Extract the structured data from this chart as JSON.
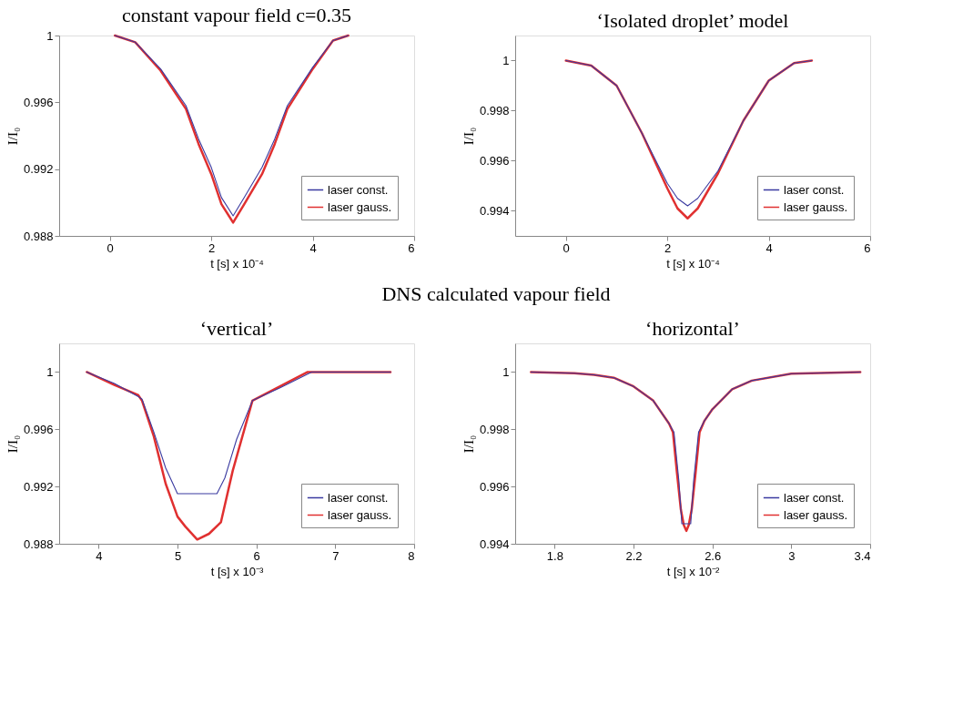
{
  "chart_data": [
    {
      "type": "line",
      "title": "constant vapour field c=0.35",
      "xlabel": "t [s] x 10⁻⁴",
      "ylabel": "I/I₀",
      "xlim": [
        -1,
        6
      ],
      "ylim": [
        0.988,
        1
      ],
      "xticks": [
        0,
        2,
        4,
        6
      ],
      "yticks": [
        0.988,
        0.992,
        0.996,
        1
      ],
      "grid": false,
      "legend": "bottom right",
      "line_style": "solid",
      "marker": "none",
      "series": [
        {
          "name": "laser const.",
          "color": "#3a3aa0",
          "x": [
            0.1,
            0.5,
            1.0,
            1.5,
            1.75,
            2.0,
            2.2,
            2.43,
            2.65,
            3.0,
            3.25,
            3.5,
            4.0,
            4.4,
            4.7
          ],
          "values": [
            1,
            0.9996,
            0.998,
            0.9958,
            0.9938,
            0.9921,
            0.9903,
            0.9892,
            0.9903,
            0.9921,
            0.9938,
            0.9958,
            0.9981,
            0.9997,
            1
          ]
        },
        {
          "name": "laser gauss.",
          "color": "#e03030",
          "x": [
            0.1,
            0.5,
            1.0,
            1.5,
            1.75,
            2.0,
            2.2,
            2.43,
            2.65,
            3.0,
            3.25,
            3.5,
            4.0,
            4.4,
            4.7
          ],
          "values": [
            1,
            0.9996,
            0.9979,
            0.9956,
            0.9935,
            0.9917,
            0.9899,
            0.9888,
            0.9899,
            0.9917,
            0.9935,
            0.9956,
            0.998,
            0.9997,
            1
          ]
        }
      ]
    },
    {
      "type": "line",
      "title": "‘Isolated droplet’ model",
      "xlabel": "t [s] x 10⁻⁴",
      "ylabel": "I/I₀",
      "xlim": [
        -1,
        6
      ],
      "ylim": [
        0.993,
        1.001
      ],
      "xticks": [
        0,
        2,
        4,
        6
      ],
      "yticks": [
        0.994,
        0.996,
        0.998,
        1
      ],
      "grid": false,
      "legend": "bottom right",
      "line_style": "solid",
      "marker": "none",
      "series": [
        {
          "name": "laser const.",
          "color": "#3a3aa0",
          "x": [
            0,
            0.5,
            1.0,
            1.5,
            2.0,
            2.2,
            2.4,
            2.6,
            3.0,
            3.5,
            4.0,
            4.5,
            4.85
          ],
          "values": [
            1,
            0.9998,
            0.999,
            0.9971,
            0.9951,
            0.9945,
            0.9942,
            0.9945,
            0.9956,
            0.9976,
            0.9992,
            0.9999,
            1
          ]
        },
        {
          "name": "laser gauss.",
          "color": "#e03030",
          "x": [
            0,
            0.5,
            1.0,
            1.5,
            2.0,
            2.2,
            2.4,
            2.6,
            3.0,
            3.5,
            4.0,
            4.5,
            4.85
          ],
          "values": [
            1,
            0.9998,
            0.999,
            0.9971,
            0.9949,
            0.9941,
            0.9937,
            0.9941,
            0.9955,
            0.9976,
            0.9992,
            0.9999,
            1
          ]
        }
      ]
    },
    {
      "type": "line",
      "title": "‘vertical’",
      "annotations": [
        "DNS calculated vapour field"
      ],
      "xlabel": "t [s] x 10⁻³",
      "ylabel": "I/I₀",
      "xlim": [
        3.5,
        8
      ],
      "ylim": [
        0.988,
        1.002
      ],
      "xticks": [
        4,
        5,
        6,
        7,
        8
      ],
      "yticks": [
        0.988,
        0.992,
        0.996,
        1
      ],
      "grid": false,
      "legend": "bottom right",
      "line_style": "solid",
      "marker": "none",
      "series": [
        {
          "name": "laser const.",
          "color": "#3a3aa0",
          "x": [
            3.85,
            4.2,
            4.5,
            4.55,
            4.7,
            4.85,
            5.0,
            5.5,
            5.6,
            5.75,
            5.95,
            6.3,
            6.7,
            7.7
          ],
          "values": [
            1,
            0.9992,
            0.9983,
            0.9981,
            0.9958,
            0.9933,
            0.9915,
            0.9915,
            0.9926,
            0.9953,
            0.998,
            0.9989,
            1,
            1
          ]
        },
        {
          "name": "laser gauss.",
          "color": "#e03030",
          "x": [
            3.85,
            4.2,
            4.5,
            4.55,
            4.7,
            4.85,
            5.0,
            5.1,
            5.25,
            5.4,
            5.55,
            5.7,
            5.95,
            6.3,
            6.65,
            7.7
          ],
          "values": [
            1,
            0.9991,
            0.9984,
            0.998,
            0.9955,
            0.9922,
            0.9899,
            0.9892,
            0.9883,
            0.9887,
            0.9895,
            0.9931,
            0.998,
            0.999,
            1,
            1
          ]
        }
      ]
    },
    {
      "type": "line",
      "title": "‘horizontal’",
      "xlabel": "t [s] x 10⁻²",
      "ylabel": "I/I₀",
      "xlim": [
        1.6,
        3.4
      ],
      "ylim": [
        0.994,
        1.001
      ],
      "xticks": [
        1.8,
        2.2,
        2.6,
        3,
        3.4
      ],
      "yticks": [
        0.994,
        0.996,
        0.998,
        1
      ],
      "grid": false,
      "legend": "bottom right",
      "line_style": "solid",
      "marker": "none",
      "series": [
        {
          "name": "laser const.",
          "color": "#3a3aa0",
          "x": [
            1.68,
            1.9,
            2.0,
            2.1,
            2.2,
            2.3,
            2.38,
            2.405,
            2.43,
            2.445,
            2.49,
            2.505,
            2.53,
            2.56,
            2.6,
            2.7,
            2.8,
            3.0,
            3.35
          ],
          "values": [
            1,
            0.99996,
            0.9999,
            0.9998,
            0.9995,
            0.999,
            0.9982,
            0.9979,
            0.9962,
            0.9947,
            0.9947,
            0.9962,
            0.9979,
            0.9983,
            0.9987,
            0.9994,
            0.9997,
            0.99994,
            1
          ]
        },
        {
          "name": "laser gauss.",
          "color": "#e03030",
          "x": [
            1.68,
            1.9,
            2.0,
            2.1,
            2.2,
            2.3,
            2.38,
            2.4,
            2.42,
            2.44,
            2.455,
            2.468,
            2.48,
            2.495,
            2.515,
            2.535,
            2.56,
            2.6,
            2.7,
            2.8,
            3.0,
            3.35
          ],
          "values": [
            1,
            0.99996,
            0.9999,
            0.9998,
            0.9995,
            0.999,
            0.9982,
            0.9979,
            0.9965,
            0.9952,
            0.99465,
            0.99445,
            0.99465,
            0.9952,
            0.9965,
            0.9979,
            0.9983,
            0.9987,
            0.9994,
            0.9997,
            0.99994,
            1
          ]
        }
      ]
    }
  ]
}
